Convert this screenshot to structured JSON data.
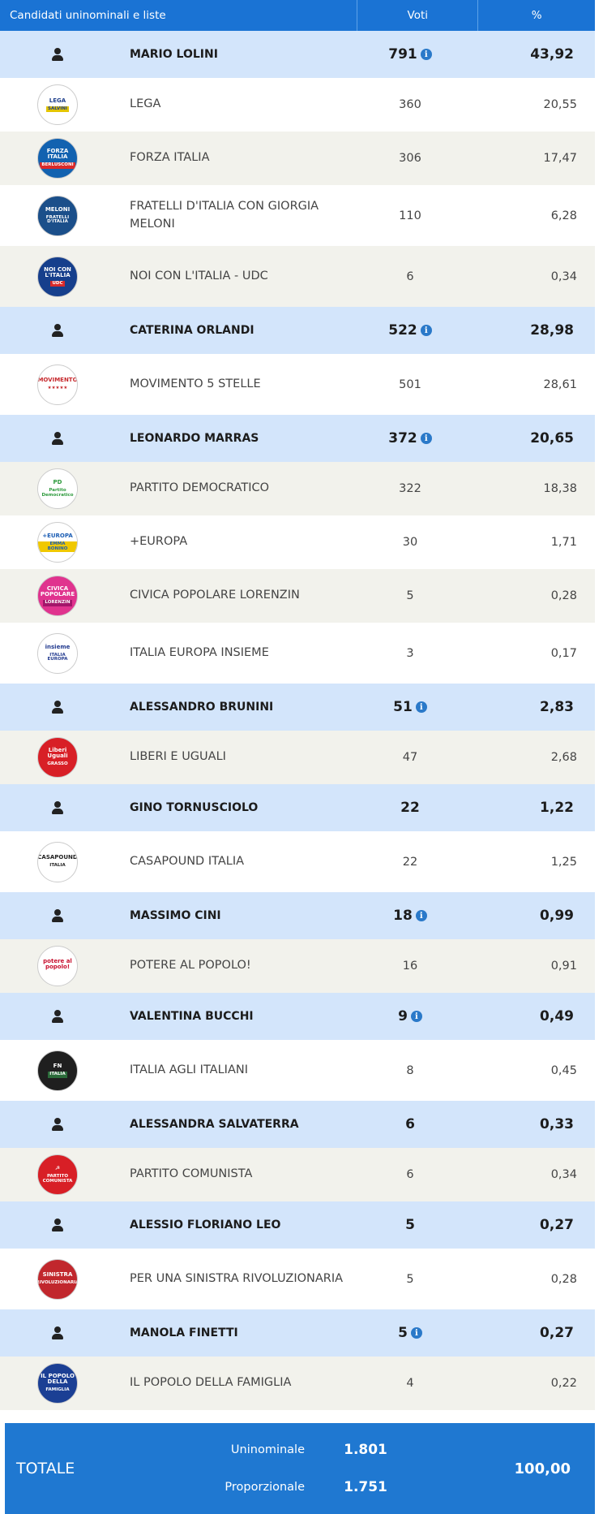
{
  "header": {
    "col_candidates": "Candidati uninominali e liste",
    "col_votes": "Voti",
    "col_pct": "%"
  },
  "rows": [
    {
      "kind": "cand",
      "name": "MARIO LOLINI",
      "votes": "791",
      "pct": "43,92",
      "info": true
    },
    {
      "kind": "party",
      "name": "LEGA",
      "votes": "360",
      "pct": "20,55",
      "logo": "LEGA",
      "sub": "SALVINI",
      "bg": "#ffffff",
      "fg": "#1e3f8c",
      "sub_bg": "#e4c500",
      "bgstyle": "wht"
    },
    {
      "kind": "party",
      "name": "FORZA ITALIA",
      "votes": "306",
      "pct": "17,47",
      "logo": "FORZA ITALIA",
      "sub": "BERLUSCONI",
      "bg": "#1262b0",
      "fg": "#ffffff",
      "sub_bg": "#d92a2a",
      "bgstyle": "alt"
    },
    {
      "kind": "party",
      "name": "FRATELLI D'ITALIA CON GIORGIA MELONI",
      "votes": "110",
      "pct": "6,28",
      "logo": "MELONI",
      "sub": "FRATELLI D'ITALIA",
      "bg": "#1b4f8a",
      "fg": "#ffffff",
      "sub_bg": "#1b4f8a",
      "bgstyle": "wht",
      "tall": true
    },
    {
      "kind": "party",
      "name": "NOI CON L'ITALIA - UDC",
      "votes": "6",
      "pct": "0,34",
      "logo": "NOI CON L'ITALIA",
      "sub": "UDC",
      "bg": "#163f8c",
      "fg": "#ffffff",
      "sub_bg": "#d92a2a",
      "bgstyle": "alt",
      "tall": true
    },
    {
      "kind": "cand",
      "name": "CATERINA ORLANDI",
      "votes": "522",
      "pct": "28,98",
      "info": true
    },
    {
      "kind": "party",
      "name": "MOVIMENTO 5 STELLE",
      "votes": "501",
      "pct": "28,61",
      "logo": "MOVIMENTO",
      "sub": "★★★★★",
      "bg": "#ffffff",
      "fg": "#c6292d",
      "sub_bg": "#ffffff",
      "bgstyle": "wht",
      "tall": true
    },
    {
      "kind": "cand",
      "name": "LEONARDO MARRAS",
      "votes": "372",
      "pct": "20,65",
      "info": true
    },
    {
      "kind": "party",
      "name": "PARTITO DEMOCRATICO",
      "votes": "322",
      "pct": "18,38",
      "logo": "PD",
      "sub": "Partito Democratico",
      "bg": "#ffffff",
      "fg": "#2d9a3c",
      "sub_bg": "#ffffff",
      "bgstyle": "alt"
    },
    {
      "kind": "party",
      "name": "+EUROPA",
      "votes": "30",
      "pct": "1,71",
      "logo": "+EUROPA",
      "sub": "EMMA BONINO",
      "bg": "#ffffff",
      "fg": "#1e5fb5",
      "sub_bg": "#f0c800",
      "bgstyle": "wht"
    },
    {
      "kind": "party",
      "name": "CIVICA POPOLARE LORENZIN",
      "votes": "5",
      "pct": "0,28",
      "logo": "CIVICA POPOLARE",
      "sub": "LORENZIN",
      "bg": "#e0338e",
      "fg": "#ffffff",
      "sub_bg": "#a3166a",
      "bgstyle": "alt"
    },
    {
      "kind": "party",
      "name": "ITALIA EUROPA INSIEME",
      "votes": "3",
      "pct": "0,17",
      "logo": "insieme",
      "sub": "ITALIA EUROPA",
      "bg": "#ffffff",
      "fg": "#233b8f",
      "sub_bg": "#ffffff",
      "bgstyle": "wht",
      "tall": true
    },
    {
      "kind": "cand",
      "name": "ALESSANDRO BRUNINI",
      "votes": "51",
      "pct": "2,83",
      "info": true
    },
    {
      "kind": "party",
      "name": "LIBERI E UGUALI",
      "votes": "47",
      "pct": "2,68",
      "logo": "Liberi Uguali",
      "sub": "GRASSO",
      "bg": "#d81f26",
      "fg": "#ffffff",
      "sub_bg": "#d81f26",
      "bgstyle": "alt"
    },
    {
      "kind": "cand",
      "name": "GINO TORNUSCIOLO",
      "votes": "22",
      "pct": "1,22",
      "info": false
    },
    {
      "kind": "party",
      "name": "CASAPOUND ITALIA",
      "votes": "22",
      "pct": "1,25",
      "logo": "CASAPOUND",
      "sub": "ITALIA",
      "bg": "#ffffff",
      "fg": "#222222",
      "sub_bg": "#ffffff",
      "bgstyle": "wht",
      "tall": true
    },
    {
      "kind": "cand",
      "name": "MASSIMO CINI",
      "votes": "18",
      "pct": "0,99",
      "info": true
    },
    {
      "kind": "party",
      "name": "POTERE AL POPOLO!",
      "votes": "16",
      "pct": "0,91",
      "logo": "potere al popolo!",
      "sub": "",
      "bg": "#ffffff",
      "fg": "#c8102e",
      "sub_bg": "#ffffff",
      "bgstyle": "alt"
    },
    {
      "kind": "cand",
      "name": "VALENTINA BUCCHI",
      "votes": "9",
      "pct": "0,49",
      "info": true
    },
    {
      "kind": "party",
      "name": "ITALIA AGLI ITALIANI",
      "votes": "8",
      "pct": "0,45",
      "logo": "FN",
      "sub": "ITALIA",
      "bg": "#1f1f1f",
      "fg": "#ffffff",
      "sub_bg": "#2b6b3a",
      "bgstyle": "wht",
      "tall": true
    },
    {
      "kind": "cand",
      "name": "ALESSANDRA SALVATERRA",
      "votes": "6",
      "pct": "0,33",
      "info": false
    },
    {
      "kind": "party",
      "name": "PARTITO COMUNISTA",
      "votes": "6",
      "pct": "0,34",
      "logo": "☭",
      "sub": "PARTITO COMUNISTA",
      "bg": "#d81f26",
      "fg": "#ffffff",
      "sub_bg": "#d81f26",
      "bgstyle": "alt"
    },
    {
      "kind": "cand",
      "name": "ALESSIO FLORIANO LEO",
      "votes": "5",
      "pct": "0,27",
      "info": false
    },
    {
      "kind": "party",
      "name": "PER UNA SINISTRA RIVOLUZIONARIA",
      "votes": "5",
      "pct": "0,28",
      "logo": "SINISTRA",
      "sub": "RIVOLUZIONARIA",
      "bg": "#c1272d",
      "fg": "#ffffff",
      "sub_bg": "#c1272d",
      "bgstyle": "wht",
      "tall": true
    },
    {
      "kind": "cand",
      "name": "MANOLA FINETTI",
      "votes": "5",
      "pct": "0,27",
      "info": true
    },
    {
      "kind": "party",
      "name": "IL POPOLO DELLA FAMIGLIA",
      "votes": "4",
      "pct": "0,22",
      "logo": "IL POPOLO DELLA",
      "sub": "FAMIGLIA",
      "bg": "#1b3f94",
      "fg": "#ffffff",
      "sub_bg": "#1b3f94",
      "bgstyle": "alt"
    }
  ],
  "total": {
    "label": "TOTALE",
    "uninominale_label": "Uninominale",
    "uninominale_value": "1.801",
    "proporzionale_label": "Proporzionale",
    "proporzionale_value": "1.751",
    "pct": "100,00"
  },
  "colors": {
    "header_bg": "#1a73d4",
    "candidate_bg": "#d3e5fb",
    "party_alt_bg": "#f2f2ec",
    "total_bg": "#1f78d1",
    "info_icon": "#2a79c9"
  }
}
